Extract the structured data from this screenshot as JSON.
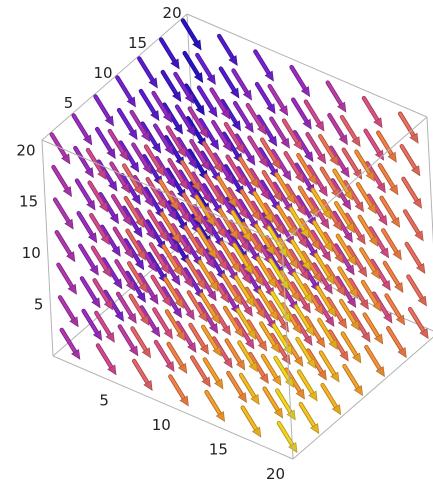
{
  "chart_data": {
    "type": "vector_field_3d",
    "title": "",
    "xlabel": "",
    "ylabel": "",
    "zlabel": "",
    "x_range": [
      0,
      21
    ],
    "y_range": [
      0,
      21
    ],
    "z_range": [
      0,
      21
    ],
    "x_ticks": [
      5,
      10,
      15,
      20
    ],
    "y_ticks": [
      5,
      10,
      15,
      20
    ],
    "z_ticks": [
      5,
      10,
      15,
      20
    ],
    "grid": false,
    "box": true,
    "legend": "none",
    "sample_points_per_axis": 7,
    "sample_range": [
      1,
      20
    ],
    "vector_direction": [
      0.25,
      0.35,
      -1
    ],
    "color_scheme": [
      "#2a12c8",
      "#6a20d6",
      "#a22ec0",
      "#d84c8c",
      "#f27a4a",
      "#f8a826",
      "#f4d41c"
    ],
    "color_by": "arrow position along the viewing direction (back to front)"
  }
}
